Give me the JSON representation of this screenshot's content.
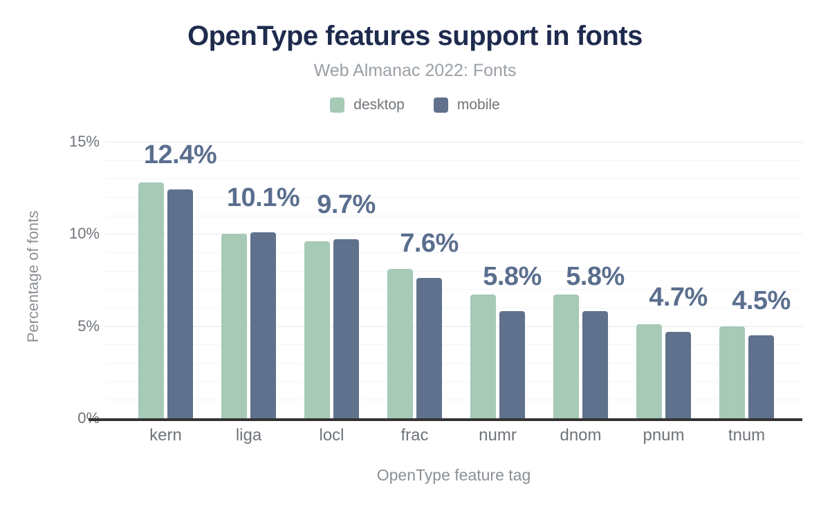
{
  "chart_data": {
    "type": "bar",
    "title": "OpenType features support in fonts",
    "subtitle": "Web Almanac 2022: Fonts",
    "xlabel": "OpenType feature tag",
    "ylabel": "Percentage of fonts",
    "categories": [
      "kern",
      "liga",
      "locl",
      "frac",
      "numr",
      "dnom",
      "pnum",
      "tnum"
    ],
    "series": [
      {
        "name": "desktop",
        "color": "#a6cab6",
        "values": [
          12.8,
          10.0,
          9.6,
          8.1,
          6.7,
          6.7,
          5.1,
          5.0
        ]
      },
      {
        "name": "mobile",
        "color": "#5f718c",
        "values": [
          12.4,
          10.1,
          9.7,
          7.6,
          5.8,
          5.8,
          4.7,
          4.5
        ]
      }
    ],
    "bar_labels": [
      "12.4%",
      "10.1%",
      "9.7%",
      "7.6%",
      "5.8%",
      "5.8%",
      "4.7%",
      "4.5%"
    ],
    "bar_labels_series": "mobile",
    "yticks": [
      {
        "label": "0%",
        "value": 0
      },
      {
        "label": "5%",
        "value": 5
      },
      {
        "label": "10%",
        "value": 10
      },
      {
        "label": "15%",
        "value": 15
      }
    ],
    "ylim": [
      0,
      15
    ],
    "grid": {
      "minor_step": 1,
      "major_step": 5,
      "orientation": "horizontal"
    },
    "legend_position": "top",
    "colors": {
      "title": "#1e2b4e",
      "subtitle": "#9aa0a6",
      "value_label": "#5a6e8e",
      "tick_text": "#6f7479",
      "axis_title_text": "#8b9095",
      "axis_line": "#333333",
      "grid_minor": "#f3f4f6",
      "grid_major": "#e6e8ea",
      "background": "#ffffff"
    }
  }
}
